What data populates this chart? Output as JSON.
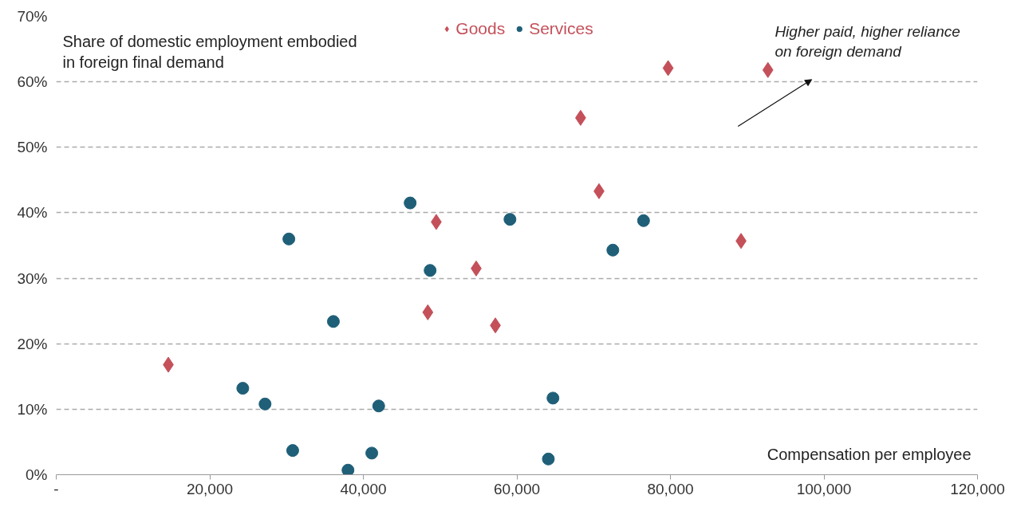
{
  "chart_data": {
    "type": "scatter",
    "xlabel": "Compensation per employee",
    "ylabel": "Share of domestic employment embodied in foreign final demand",
    "annotations": [
      "Higher paid, higher reliance on foreign demand"
    ],
    "xlim": [
      0,
      120000
    ],
    "xticks": [
      {
        "value": 0,
        "label": "-"
      },
      {
        "value": 20000,
        "label": "20,000"
      },
      {
        "value": 40000,
        "label": "40,000"
      },
      {
        "value": 60000,
        "label": "60,000"
      },
      {
        "value": 80000,
        "label": "80,000"
      },
      {
        "value": 100000,
        "label": "100,000"
      },
      {
        "value": 120000,
        "label": "120,000"
      }
    ],
    "ylim": [
      0,
      70
    ],
    "yticks": [
      {
        "value": 0,
        "label": "0%"
      },
      {
        "value": 10,
        "label": "10%"
      },
      {
        "value": 20,
        "label": "20%"
      },
      {
        "value": 30,
        "label": "30%"
      },
      {
        "value": 40,
        "label": "40%"
      },
      {
        "value": 50,
        "label": "50%"
      },
      {
        "value": 60,
        "label": "60%"
      },
      {
        "value": 70,
        "label": "70%"
      }
    ],
    "grid": "y",
    "legend": "top",
    "series": [
      {
        "name": "Goods",
        "color": "#c4505a",
        "marker": "diamond",
        "x": [
          14600,
          48400,
          49500,
          54700,
          57200,
          68300,
          70700,
          79700,
          89200,
          92700
        ],
        "values": [
          16.8,
          24.8,
          38.6,
          31.5,
          22.8,
          54.5,
          43.3,
          62.1,
          35.7,
          61.8
        ]
      },
      {
        "name": "Services",
        "color": "#1f5f78",
        "marker": "circle",
        "x": [
          30300,
          24300,
          27200,
          30800,
          36100,
          38000,
          41100,
          42000,
          46100,
          48700,
          59100,
          64100,
          64700,
          72500,
          76500
        ],
        "values": [
          36.0,
          13.2,
          10.8,
          3.7,
          23.4,
          0.7,
          3.3,
          10.5,
          41.5,
          31.2,
          39.0,
          2.4,
          11.7,
          34.3,
          38.8
        ]
      }
    ]
  }
}
